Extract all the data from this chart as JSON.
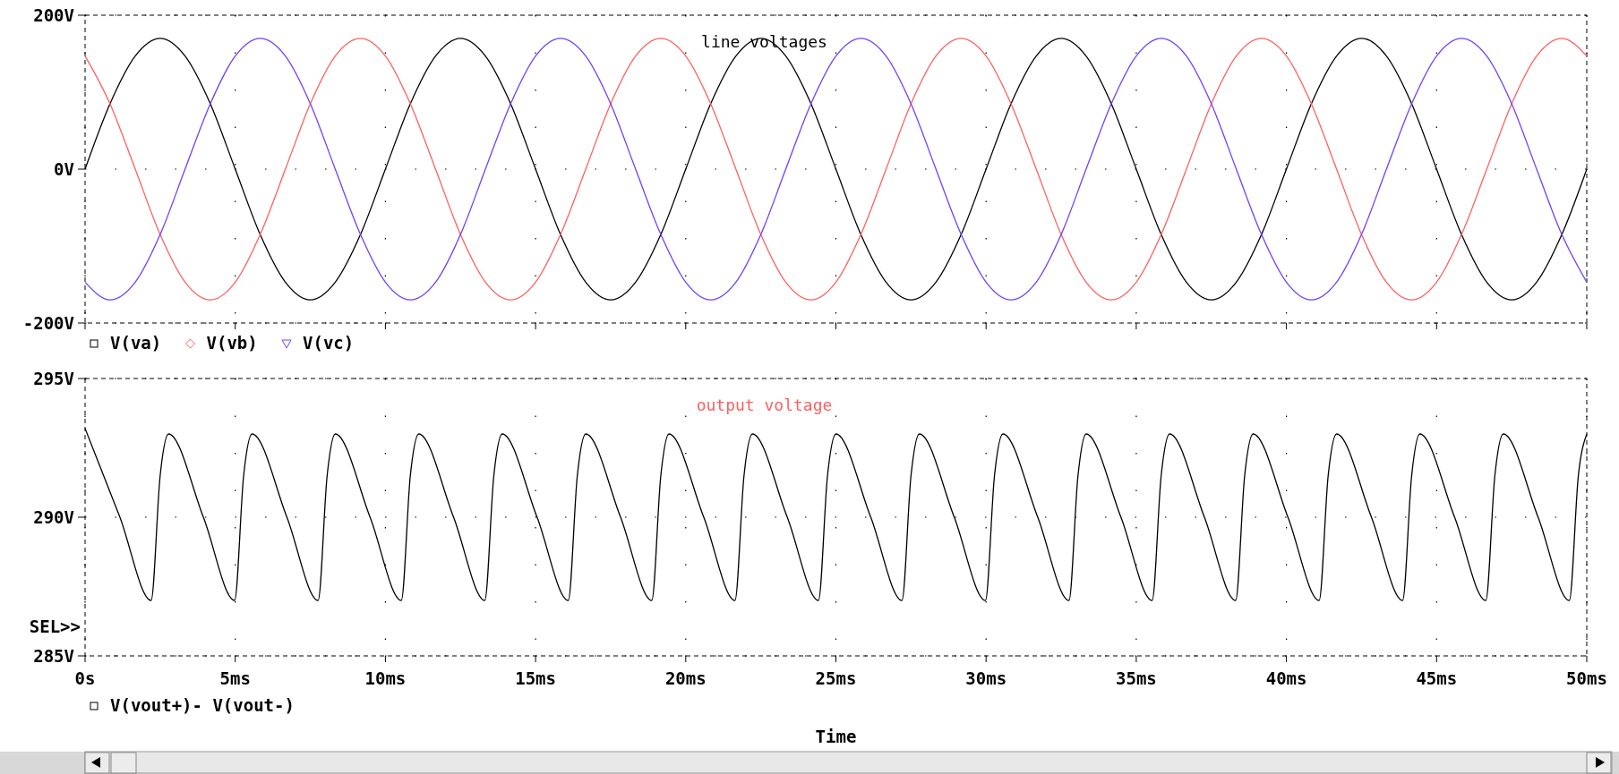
{
  "chart_data": [
    {
      "type": "line",
      "title": "line voltages",
      "x": [
        0,
        0.83,
        1.67,
        2.5,
        3.33,
        4.17,
        5,
        5.83,
        6.67,
        7.5,
        8.33,
        9.17,
        10,
        10.83,
        11.67,
        12.5,
        13.33,
        14.17,
        15,
        15.83,
        16.67,
        17.5,
        18.33,
        19.17,
        20,
        20.83,
        21.67,
        22.5,
        23.33,
        24.17,
        25,
        25.83,
        26.67,
        27.5,
        28.33,
        29.17,
        30,
        30.83,
        31.67,
        32.5,
        33.33,
        34.17,
        35,
        35.83,
        36.67,
        37.5,
        38.33,
        39.17,
        40,
        40.83,
        41.67,
        42.5,
        43.33,
        44.17,
        45,
        45.83,
        46.67,
        47.5,
        48.33,
        49.17,
        50
      ],
      "series": [
        {
          "name": "V(va)",
          "color": "#000000",
          "values": [
            0,
            85,
            147,
            170,
            147,
            85,
            0,
            -85,
            -147,
            -170,
            -147,
            -85,
            0,
            85,
            147,
            170,
            147,
            85,
            0,
            -85,
            -147,
            -170,
            -147,
            -85,
            0,
            85,
            147,
            170,
            147,
            85,
            0,
            -85,
            -147,
            -170,
            -147,
            -85,
            0,
            85,
            147,
            170,
            147,
            85,
            0,
            -85,
            -147,
            -170,
            -147,
            -85,
            0,
            85,
            147,
            170,
            147,
            85,
            0,
            -85,
            -147,
            -170,
            -147,
            -85,
            0
          ]
        },
        {
          "name": "V(vb)",
          "color": "#ff6060",
          "values": [
            147,
            85,
            0,
            -85,
            -147,
            -170,
            -147,
            -85,
            0,
            85,
            147,
            170,
            147,
            85,
            0,
            -85,
            -147,
            -170,
            -147,
            -85,
            0,
            85,
            147,
            170,
            147,
            85,
            0,
            -85,
            -147,
            -170,
            -147,
            -85,
            0,
            85,
            147,
            170,
            147,
            85,
            0,
            -85,
            -147,
            -170,
            -147,
            -85,
            0,
            85,
            147,
            170,
            147,
            85,
            0,
            -85,
            -147,
            -170,
            -147,
            -85,
            0,
            85,
            147,
            170,
            147
          ]
        },
        {
          "name": "V(vc)",
          "color": "#7040ff",
          "values": [
            -147,
            -170,
            -147,
            -85,
            0,
            85,
            147,
            170,
            147,
            85,
            0,
            -85,
            -147,
            -170,
            -147,
            -85,
            0,
            85,
            147,
            170,
            147,
            85,
            0,
            -85,
            -147,
            -170,
            -147,
            -85,
            0,
            85,
            147,
            170,
            147,
            85,
            0,
            -85,
            -147,
            -170,
            -147,
            -85,
            0,
            85,
            147,
            170,
            147,
            85,
            0,
            -85,
            -147,
            -170,
            -147,
            -85,
            0,
            85,
            147,
            170,
            147,
            85,
            0,
            -85,
            -147
          ]
        }
      ],
      "xlim": [
        0,
        50
      ],
      "xticks": [
        {
          "value": 0,
          "label": null
        },
        {
          "value": 5,
          "label": null
        },
        {
          "value": 10,
          "label": null
        },
        {
          "value": 15,
          "label": null
        },
        {
          "value": 20,
          "label": null
        },
        {
          "value": 25,
          "label": null
        },
        {
          "value": 30,
          "label": null
        },
        {
          "value": 35,
          "label": null
        },
        {
          "value": 40,
          "label": null
        },
        {
          "value": 45,
          "label": null
        },
        {
          "value": 50,
          "label": null
        }
      ],
      "ylim": [
        -200,
        200
      ],
      "yticks": [
        {
          "value": -200,
          "label": "-200V"
        },
        {
          "value": 0,
          "label": "0V"
        },
        {
          "value": 200,
          "label": "200V"
        }
      ],
      "tick_labels": "y",
      "grid": true,
      "legend": "bottom"
    },
    {
      "type": "line",
      "title": "output voltage",
      "xlabel": "Time",
      "annotations": [
        "SEL>>"
      ],
      "series": [
        {
          "name": "V(vout+)- V(vout-)",
          "color": "#000000",
          "x": [
            0,
            1.16,
            2.2,
            2.5,
            2.78,
            3.94,
            4.98,
            5.28,
            5.56,
            6.72,
            7.76,
            8.06,
            8.33,
            9.49,
            10.53,
            10.83,
            11.11,
            12.27,
            13.31,
            13.61,
            13.89,
            15.05,
            16.09,
            16.39,
            16.67,
            17.83,
            18.87,
            19.17,
            19.44,
            20.6,
            21.64,
            21.94,
            22.22,
            23.38,
            24.42,
            24.72,
            25,
            26.16,
            27.2,
            27.5,
            27.78,
            28.94,
            29.98,
            30.28,
            30.56,
            31.72,
            32.76,
            33.06,
            33.33,
            34.49,
            35.53,
            35.83,
            36.11,
            37.27,
            38.31,
            38.61,
            38.89,
            40.05,
            41.09,
            41.39,
            41.67,
            42.83,
            43.87,
            44.17,
            44.44,
            45.6,
            46.64,
            46.94,
            47.22,
            48.38,
            49.42,
            49.72,
            50
          ],
          "values": [
            293.2,
            290,
            287,
            291.5,
            293,
            290,
            287,
            291.5,
            293,
            290,
            287,
            291.5,
            293,
            290,
            287,
            291.5,
            293,
            290,
            287,
            291.5,
            293,
            290,
            287,
            291.5,
            293,
            290,
            287,
            291.5,
            293,
            290,
            287,
            291.5,
            293,
            290,
            287,
            291.5,
            293,
            290,
            287,
            291.5,
            293,
            290,
            287,
            291.5,
            293,
            290,
            287,
            291.5,
            293,
            290,
            287,
            291.5,
            293,
            290,
            287,
            291.5,
            293,
            290,
            287,
            291.5,
            293,
            290,
            287,
            291.5,
            293,
            290,
            287,
            291.5,
            293,
            290,
            287,
            291.5,
            293
          ]
        }
      ],
      "xlim": [
        0,
        50
      ],
      "xticks": [
        {
          "value": 0,
          "label": "0s"
        },
        {
          "value": 5,
          "label": "5ms"
        },
        {
          "value": 10,
          "label": "10ms"
        },
        {
          "value": 15,
          "label": "15ms"
        },
        {
          "value": 20,
          "label": "20ms"
        },
        {
          "value": 25,
          "label": "25ms"
        },
        {
          "value": 30,
          "label": "30ms"
        },
        {
          "value": 35,
          "label": "35ms"
        },
        {
          "value": 40,
          "label": "40ms"
        },
        {
          "value": 45,
          "label": "45ms"
        },
        {
          "value": 50,
          "label": "50ms"
        }
      ],
      "ylim": [
        285,
        295
      ],
      "yticks": [
        {
          "value": 285,
          "label": "285V"
        },
        {
          "value": 290,
          "label": "290V"
        },
        {
          "value": 295,
          "label": "295V"
        }
      ],
      "grid": true,
      "legend": "bottom"
    }
  ]
}
